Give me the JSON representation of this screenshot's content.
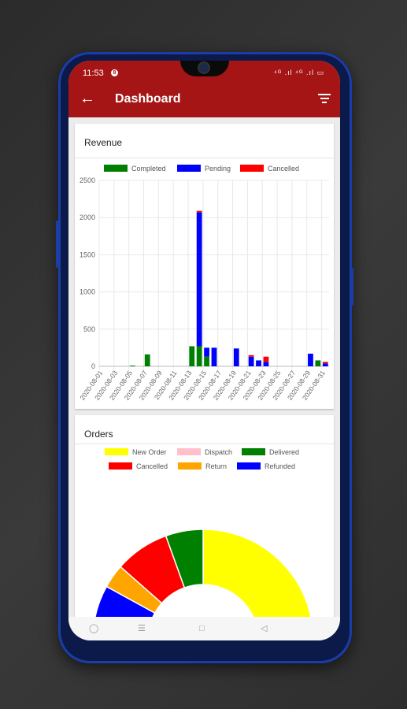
{
  "status_bar": {
    "time": "11:53",
    "badge": "8",
    "icons_text": "⁴ᴳ .ıl ⁴ᴳ .ıl ▭"
  },
  "app_bar": {
    "title": "Dashboard",
    "back_icon": "arrow-left-icon",
    "filter_icon": "filter-icon"
  },
  "revenue_card": {
    "title": "Revenue",
    "legend": [
      {
        "name": "Completed",
        "color": "#008000"
      },
      {
        "name": "Pending",
        "color": "#0000ff"
      },
      {
        "name": "Cancelled",
        "color": "#ff0000"
      }
    ]
  },
  "orders_card": {
    "title": "Orders",
    "legend": [
      {
        "name": "New Order",
        "color": "#ffff00"
      },
      {
        "name": "Dispatch",
        "color": "#ffc0cb"
      },
      {
        "name": "Delivered",
        "color": "#008000"
      },
      {
        "name": "Cancelled",
        "color": "#ff0000"
      },
      {
        "name": "Return",
        "color": "#ffa500"
      },
      {
        "name": "Refunded",
        "color": "#0000ff"
      }
    ]
  },
  "chart_data": [
    {
      "type": "bar",
      "stacked": true,
      "title": "",
      "ylim": [
        0,
        2500
      ],
      "yticks": [
        "0",
        "500",
        "1000",
        "1500",
        "2000",
        "2500"
      ],
      "tick_labels": [
        "2020-08-01",
        "2020-08-03",
        "2020-08-05",
        "2020-08-07",
        "2020-08-09",
        "2020-08-11",
        "2020-08-13",
        "2020-08-15",
        "2020-08-17",
        "2020-08-19",
        "2020-08-21",
        "2020-08-23",
        "2020-08-25",
        "2020-08-27",
        "2020-08-29",
        "2020-08-31"
      ],
      "categories": [
        "2020-08-01",
        "2020-08-02",
        "2020-08-03",
        "2020-08-04",
        "2020-08-05",
        "2020-08-06",
        "2020-08-07",
        "2020-08-08",
        "2020-08-09",
        "2020-08-10",
        "2020-08-11",
        "2020-08-12",
        "2020-08-13",
        "2020-08-14",
        "2020-08-15",
        "2020-08-16",
        "2020-08-17",
        "2020-08-18",
        "2020-08-19",
        "2020-08-20",
        "2020-08-21",
        "2020-08-22",
        "2020-08-23",
        "2020-08-24",
        "2020-08-25",
        "2020-08-26",
        "2020-08-27",
        "2020-08-28",
        "2020-08-29",
        "2020-08-30",
        "2020-08-31"
      ],
      "series": [
        {
          "name": "Completed",
          "color": "#008000",
          "values": [
            0,
            0,
            0,
            0,
            10,
            0,
            160,
            0,
            0,
            0,
            0,
            0,
            270,
            270,
            130,
            0,
            0,
            0,
            0,
            0,
            0,
            0,
            0,
            0,
            0,
            0,
            0,
            0,
            0,
            80,
            0
          ]
        },
        {
          "name": "Pending",
          "color": "#0000ff",
          "values": [
            0,
            0,
            0,
            0,
            0,
            0,
            0,
            0,
            0,
            0,
            0,
            0,
            0,
            1800,
            120,
            250,
            0,
            0,
            240,
            0,
            130,
            80,
            60,
            0,
            0,
            0,
            0,
            0,
            170,
            0,
            40
          ]
        },
        {
          "name": "Cancelled",
          "color": "#ff0000",
          "values": [
            0,
            0,
            0,
            0,
            0,
            0,
            0,
            0,
            0,
            0,
            0,
            0,
            0,
            20,
            0,
            0,
            0,
            0,
            0,
            0,
            20,
            0,
            70,
            0,
            0,
            0,
            0,
            0,
            0,
            0,
            20
          ]
        }
      ]
    },
    {
      "type": "pie",
      "style": "half-doughnut",
      "labels": [
        "New Order",
        "Dispatch",
        "Delivered",
        "Cancelled",
        "Return",
        "Refunded"
      ],
      "values": [
        50,
        0,
        11,
        16,
        7,
        16
      ],
      "colors": [
        "#ffff00",
        "#ffc0cb",
        "#008000",
        "#ff0000",
        "#ffa500",
        "#0000ff"
      ]
    }
  ],
  "nav_bar": {
    "items": [
      "circle-icon",
      "menu-icon",
      "square-icon",
      "back-triangle-icon"
    ]
  }
}
